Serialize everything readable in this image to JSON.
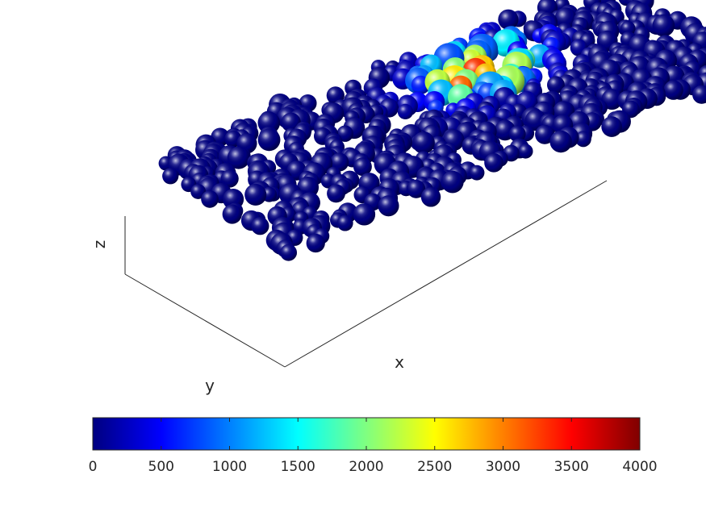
{
  "chart_data": {
    "type": "scatter3d",
    "title": "",
    "xlabel": "x",
    "ylabel": "y",
    "zlabel": "z",
    "grid": false,
    "colormap": "jet",
    "colorbar": {
      "location": "bottom",
      "min": 0,
      "max": 4000,
      "ticks": [
        0,
        500,
        1000,
        1500,
        2000,
        2500,
        3000,
        3500,
        4000
      ],
      "tick_labels": [
        "0",
        "500",
        "1000",
        "1500",
        "2000",
        "2500",
        "3000",
        "3500",
        "4000"
      ]
    },
    "hotspot": {
      "x_fraction": 0.62,
      "y_fraction": 0.28,
      "peak_value": 4000,
      "radius_fraction": 0.12
    },
    "particle_count": 640,
    "particle_appearance": "shaded spheres colored by value; most particles near 0, a high-value cluster near the back-center of the bed"
  },
  "colors": {
    "axis": "#262626",
    "background": "#ffffff"
  }
}
